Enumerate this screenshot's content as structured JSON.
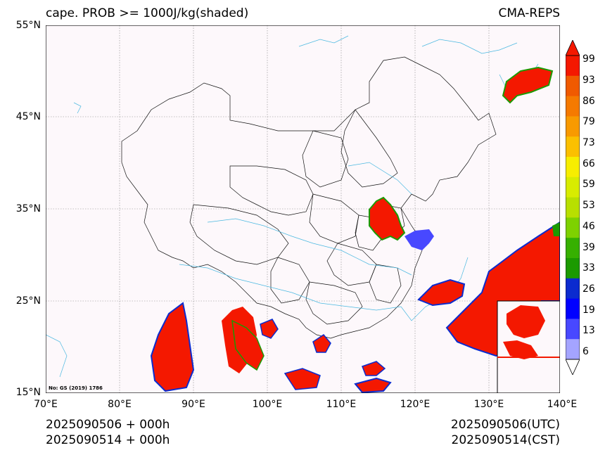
{
  "title": {
    "left": "cape. PROB >= 1000J/kg(shaded)",
    "right": "CMA-REPS"
  },
  "map": {
    "lon_range": [
      70,
      140
    ],
    "lat_range": [
      15,
      55
    ],
    "background_color": "#fdf8fb",
    "grid": "dotted",
    "note": "No: GS (2019) 1786",
    "lat_labels": [
      "55°N",
      "45°N",
      "35°N",
      "25°N",
      "15°N"
    ],
    "lon_labels": [
      "70°E",
      "80°E",
      "90°E",
      "100°E",
      "110°E",
      "120°E",
      "130°E",
      "140°E"
    ]
  },
  "colorbar": {
    "labels": [
      "99",
      "93",
      "86",
      "79",
      "73",
      "66",
      "59",
      "53",
      "46",
      "39",
      "33",
      "26",
      "19",
      "13",
      "6"
    ],
    "colors": [
      "#f41800",
      "#f05a00",
      "#f57a00",
      "#f89a00",
      "#fbc000",
      "#f7ee00",
      "#d8ec00",
      "#b8df00",
      "#7ed100",
      "#36b000",
      "#1b9a00",
      "#0b2bcf",
      "#0000ff",
      "#4848ff",
      "#a4a4ff"
    ],
    "extend": "both"
  },
  "footer": {
    "init_line1": "2025090506  +  000h",
    "init_line2": "2025090514  +  000h",
    "valid_line1": "2025090506(UTC)",
    "valid_line2": "2025090514(CST)"
  }
}
